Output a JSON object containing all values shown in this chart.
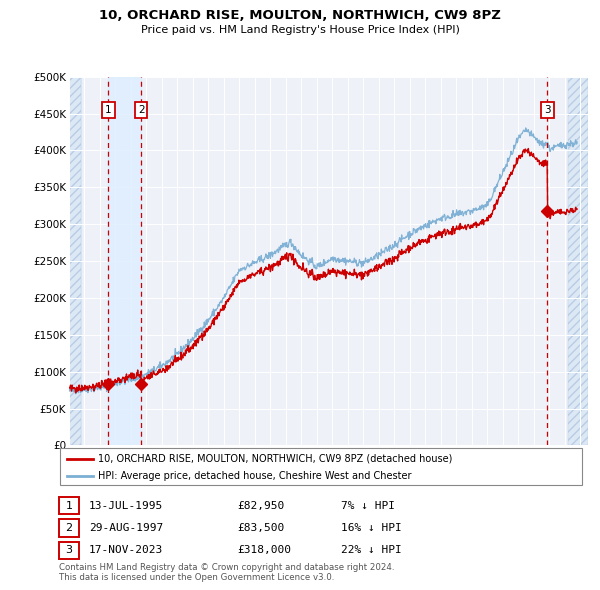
{
  "title": "10, ORCHARD RISE, MOULTON, NORTHWICH, CW9 8PZ",
  "subtitle": "Price paid vs. HM Land Registry's House Price Index (HPI)",
  "xlim_start": 1993.0,
  "xlim_end": 2026.5,
  "ylim_min": 0,
  "ylim_max": 500000,
  "yticks": [
    0,
    50000,
    100000,
    150000,
    200000,
    250000,
    300000,
    350000,
    400000,
    450000,
    500000
  ],
  "ytick_labels": [
    "£0",
    "£50K",
    "£100K",
    "£150K",
    "£200K",
    "£250K",
    "£300K",
    "£350K",
    "£400K",
    "£450K",
    "£500K"
  ],
  "hpi_color": "#7bafd4",
  "price_color": "#cc0000",
  "sale1_date": 1995.535,
  "sale1_price": 82950,
  "sale2_date": 1997.66,
  "sale2_price": 83500,
  "sale3_date": 2023.877,
  "sale3_price": 318000,
  "vline_color": "#cc0000",
  "shade_color": "#ddeeff",
  "hatch_color": "#dde8f5",
  "footer": "Contains HM Land Registry data © Crown copyright and database right 2024.\nThis data is licensed under the Open Government Licence v3.0.",
  "legend1": "10, ORCHARD RISE, MOULTON, NORTHWICH, CW9 8PZ (detached house)",
  "legend2": "HPI: Average price, detached house, Cheshire West and Chester",
  "table": [
    {
      "num": "1",
      "date": "13-JUL-1995",
      "price": "£82,950",
      "hpi": "7% ↓ HPI"
    },
    {
      "num": "2",
      "date": "29-AUG-1997",
      "price": "£83,500",
      "hpi": "16% ↓ HPI"
    },
    {
      "num": "3",
      "date": "17-NOV-2023",
      "price": "£318,000",
      "hpi": "22% ↓ HPI"
    }
  ],
  "bg_color": "#eef2f8"
}
